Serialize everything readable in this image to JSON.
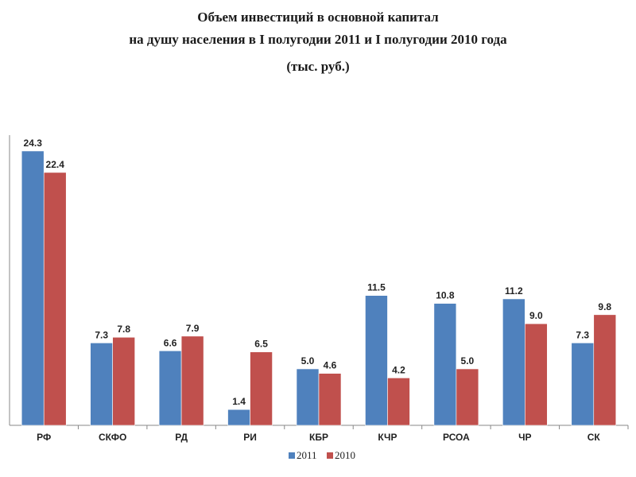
{
  "chart_data": {
    "type": "bar",
    "title_lines": [
      "Объем инвестиций в основной капитал",
      "на душу населения в I полугодии 2011 и I полугодии 2010 года"
    ],
    "unit": "(тыс. руб.)",
    "categories": [
      "РФ",
      "СКФО",
      "РД",
      "РИ",
      "КБР",
      "КЧР",
      "РСОА",
      "ЧР",
      "СК"
    ],
    "series": [
      {
        "name": "2011",
        "color": "#4F81BD",
        "values": [
          24.3,
          7.3,
          6.6,
          1.4,
          5.0,
          11.5,
          10.8,
          11.2,
          7.3
        ]
      },
      {
        "name": "2010",
        "color": "#C0504D",
        "values": [
          22.4,
          7.8,
          7.9,
          6.5,
          4.6,
          4.2,
          5.0,
          9.0,
          9.8
        ]
      }
    ],
    "ylim": [
      0,
      25
    ],
    "grid": false,
    "legend_position": "bottom",
    "value_labels": true
  }
}
